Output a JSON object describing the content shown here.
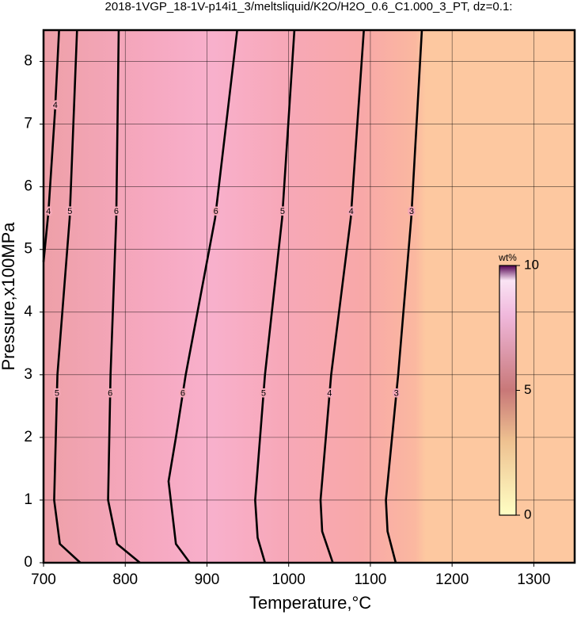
{
  "chart_data": {
    "type": "contour",
    "title": "2018-1VGP_18-1V-p14i1_3/meltsliquid/K2O/H2O_0.6_C1.000_3_PT, dz=0.1:",
    "x_label": "Temperature,°C",
    "y_label": "Pressure,x100MPa",
    "xlim": [
      700,
      1350
    ],
    "ylim": [
      0,
      8.5
    ],
    "xticks": [
      700,
      800,
      900,
      1000,
      1100,
      1200,
      1300
    ],
    "yticks": [
      0,
      1,
      2,
      3,
      4,
      5,
      6,
      7,
      8
    ],
    "grid": true,
    "contours": [
      {
        "level": 4,
        "x": [
          700,
          706,
          714,
          719
        ],
        "y": [
          4.8,
          5.6,
          7.2,
          8.5
        ]
      },
      {
        "level": 5,
        "x": [
          745,
          720,
          713,
          717,
          732,
          741
        ],
        "y": [
          0,
          0.3,
          1,
          3,
          5.5,
          8.5
        ]
      },
      {
        "level": 6,
        "x": [
          818,
          790,
          779,
          782,
          789,
          792
        ],
        "y": [
          0,
          0.3,
          1,
          3,
          5.5,
          8.5
        ]
      },
      {
        "level": 6,
        "x": [
          879,
          862,
          853,
          862,
          874,
          910,
          937
        ],
        "y": [
          0,
          0.3,
          1.3,
          2,
          3,
          5.5,
          8.5
        ]
      },
      {
        "level": 5,
        "x": [
          971,
          962,
          959,
          971,
          992,
          1007
        ],
        "y": [
          0,
          0.4,
          1,
          3,
          5.5,
          8.5
        ]
      },
      {
        "level": 4,
        "x": [
          1054,
          1041,
          1039,
          1052,
          1076,
          1092
        ],
        "y": [
          0,
          0.5,
          1,
          3,
          5.5,
          8.5
        ]
      },
      {
        "level": 3,
        "x": [
          1131,
          1121,
          1119,
          1134,
          1150,
          1163
        ],
        "y": [
          0,
          0.5,
          1,
          3,
          5.5,
          8.5
        ]
      }
    ],
    "colorbar": {
      "label": "wt%",
      "clim": [
        0,
        10
      ],
      "ticks": [
        0,
        5,
        10
      ]
    }
  }
}
